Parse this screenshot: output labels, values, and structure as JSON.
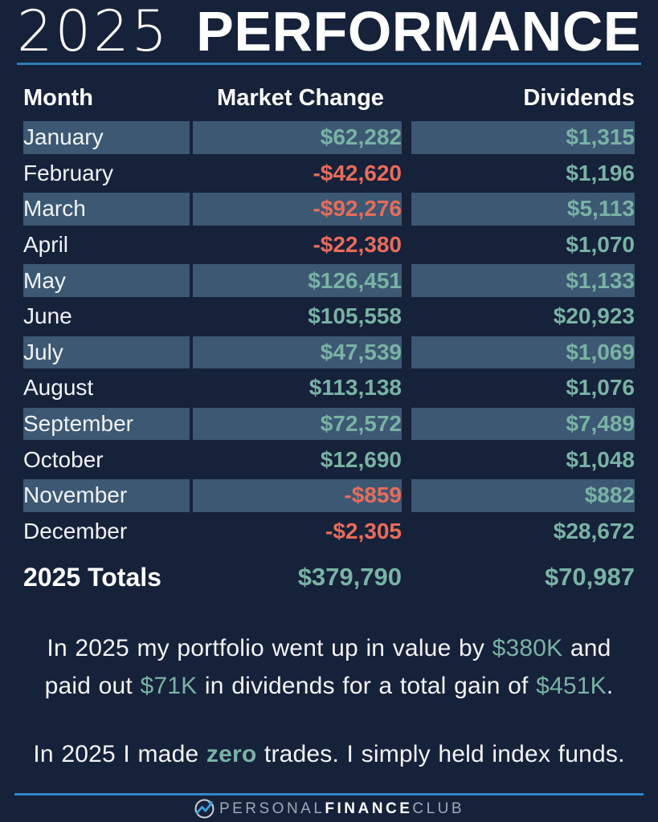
{
  "colors": {
    "bg": "#16213A",
    "row_highlight": "#3C5873",
    "teal": "#79B3A4",
    "red": "#E96C5A",
    "title_underline": "#2E7FB8",
    "footer_line": "#2F87C8",
    "logo_blue": "#3BA3E0",
    "logo_gray": "#A0A9B3",
    "text": "#FFFFFF"
  },
  "title": {
    "year": "2025",
    "word": "PERFORMANCE"
  },
  "table": {
    "headers": [
      "Month",
      "Market Change",
      "Dividends"
    ],
    "rows": [
      {
        "month": "January",
        "market_change": "$62,282",
        "dividends": "$1,315",
        "negative": false,
        "highlighted": true
      },
      {
        "month": "February",
        "market_change": "-$42,620",
        "dividends": "$1,196",
        "negative": true,
        "highlighted": false
      },
      {
        "month": "March",
        "market_change": "-$92,276",
        "dividends": "$5,113",
        "negative": true,
        "highlighted": true
      },
      {
        "month": "April",
        "market_change": "-$22,380",
        "dividends": "$1,070",
        "negative": true,
        "highlighted": false
      },
      {
        "month": "May",
        "market_change": "$126,451",
        "dividends": "$1,133",
        "negative": false,
        "highlighted": true
      },
      {
        "month": "June",
        "market_change": "$105,558",
        "dividends": "$20,923",
        "negative": false,
        "highlighted": false
      },
      {
        "month": "July",
        "market_change": "$47,539",
        "dividends": "$1,069",
        "negative": false,
        "highlighted": true
      },
      {
        "month": "August",
        "market_change": "$113,138",
        "dividends": "$1,076",
        "negative": false,
        "highlighted": false
      },
      {
        "month": "September",
        "market_change": "$72,572",
        "dividends": "$7,489",
        "negative": false,
        "highlighted": true
      },
      {
        "month": "October",
        "market_change": "$12,690",
        "dividends": "$1,048",
        "negative": false,
        "highlighted": false
      },
      {
        "month": "November",
        "market_change": "-$859",
        "dividends": "$882",
        "negative": true,
        "highlighted": true
      },
      {
        "month": "December",
        "market_change": "-$2,305",
        "dividends": "$28,672",
        "negative": true,
        "highlighted": false
      }
    ],
    "totals": {
      "label": "2025 Totals",
      "market_change": "$379,790",
      "dividends": "$70,987"
    }
  },
  "chart_data": {
    "type": "table",
    "title": "2025 Performance",
    "columns": [
      "Month",
      "Market Change",
      "Dividends"
    ],
    "rows": [
      [
        "January",
        62282,
        1315
      ],
      [
        "February",
        -42620,
        1196
      ],
      [
        "March",
        -92276,
        5113
      ],
      [
        "April",
        -22380,
        1070
      ],
      [
        "May",
        126451,
        1133
      ],
      [
        "June",
        105558,
        20923
      ],
      [
        "July",
        47539,
        1069
      ],
      [
        "August",
        113138,
        1076
      ],
      [
        "September",
        72572,
        7489
      ],
      [
        "October",
        12690,
        1048
      ],
      [
        "November",
        -859,
        882
      ],
      [
        "December",
        -2305,
        28672
      ]
    ],
    "totals": [
      "2025 Totals",
      379790,
      70987
    ],
    "annotations": [
      "In 2025 my portfolio went up in value by $380K and paid out $71K in dividends for a total gain of $451K.",
      "In 2025 I made zero trades. I simply held index funds."
    ]
  },
  "summary": {
    "line1_segments": [
      {
        "text": "In 2025 my portfolio went up in value by ",
        "accent": false
      },
      {
        "text": "$380K",
        "accent": true
      },
      {
        "text": " and",
        "accent": false
      }
    ],
    "line2_segments": [
      {
        "text": "paid out ",
        "accent": false
      },
      {
        "text": "$71K",
        "accent": true
      },
      {
        "text": " in dividends for a total gain of ",
        "accent": false
      },
      {
        "text": "$451K",
        "accent": true
      },
      {
        "text": ".",
        "accent": false
      }
    ],
    "line3_segments": [
      {
        "text": "In 2025 I made ",
        "accent": false
      },
      {
        "text": "zero",
        "accent": true,
        "bold": true
      },
      {
        "text": " trades. I simply held index funds.",
        "accent": false
      }
    ]
  },
  "footer": {
    "brand": [
      {
        "text": "PERSONAL",
        "bold": false
      },
      {
        "text": "FINANCE",
        "bold": true
      },
      {
        "text": "CLUB",
        "bold": false
      }
    ]
  }
}
